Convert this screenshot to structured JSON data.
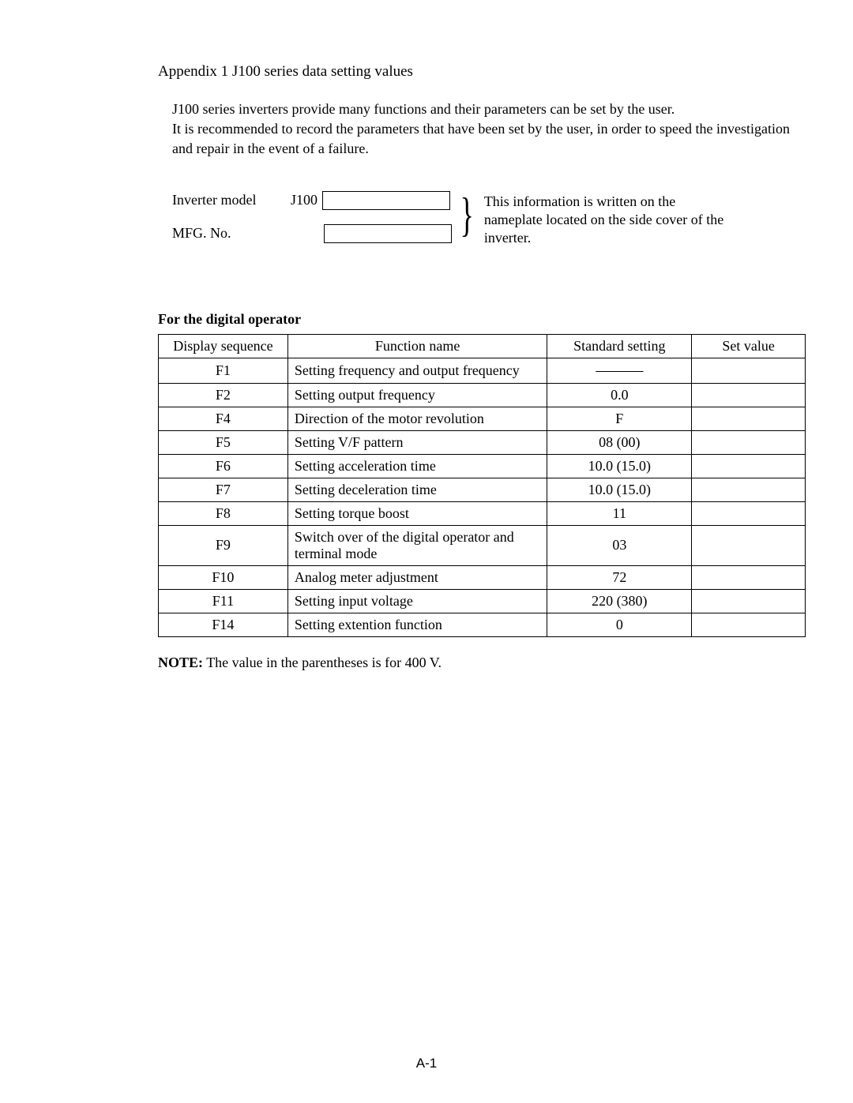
{
  "title": "Appendix 1  J100 series data setting values",
  "intro_line1": "J100 series inverters provide many functions and their parameters can be set by the user.",
  "intro_line2": "It is recommended to record the parameters that have been set by the user, in order to speed the investigation and repair in the event of a failure.",
  "form": {
    "inverter_label": "Inverter model",
    "model_prefix": "J100",
    "mfg_label": "MFG. No.",
    "brace_note": "This information is written on the nameplate located on the side cover of the inverter."
  },
  "section_head": "For the digital operator",
  "columns": {
    "seq": "Display sequence",
    "func": "Function name",
    "std": "Standard setting",
    "set": "Set value"
  },
  "rows": [
    {
      "seq": "F1",
      "func": "Setting frequency and output frequency",
      "std": "———",
      "set": ""
    },
    {
      "seq": "F2",
      "func": "Setting output frequency",
      "std": "0.0",
      "set": ""
    },
    {
      "seq": "F4",
      "func": "Direction of the motor revolution",
      "std": "F",
      "set": ""
    },
    {
      "seq": "F5",
      "func": "Setting V/F pattern",
      "std": "08 (00)",
      "set": ""
    },
    {
      "seq": "F6",
      "func": "Setting acceleration time",
      "std": "10.0 (15.0)",
      "set": ""
    },
    {
      "seq": "F7",
      "func": "Setting deceleration time",
      "std": "10.0 (15.0)",
      "set": ""
    },
    {
      "seq": "F8",
      "func": "Setting torque boost",
      "std": "11",
      "set": ""
    },
    {
      "seq": "F9",
      "func": "Switch over of the digital operator and terminal mode",
      "std": "03",
      "set": ""
    },
    {
      "seq": "F10",
      "func": "Analog meter adjustment",
      "std": "72",
      "set": ""
    },
    {
      "seq": "F11",
      "func": "Setting input voltage",
      "std": "220 (380)",
      "set": ""
    },
    {
      "seq": "F14",
      "func": "Setting extention function",
      "std": "0",
      "set": ""
    }
  ],
  "note_label": "NOTE:",
  "note_text": "  The value in the parentheses is for 400 V.",
  "page_number": "A-1"
}
